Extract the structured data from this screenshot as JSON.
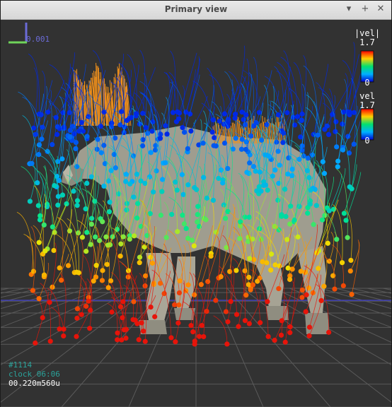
{
  "window": {
    "title": "Primary view"
  },
  "controls": {
    "minimize": "▾",
    "maximize": "+",
    "close": "✕"
  },
  "scale_bar": {
    "label": "0.001"
  },
  "colorbars": [
    {
      "title": "|vel|",
      "max": "1.7",
      "min": "0"
    },
    {
      "title": "vel",
      "max": "1.7",
      "min": "0"
    }
  ],
  "hud": {
    "frame": "#1114",
    "clock": "clock 06:06",
    "time": "00.220m560u"
  },
  "colors": {
    "background": "#323232",
    "grid": "#5a5a5a",
    "horse": "#a3a193",
    "mane": "#ee8f1c",
    "hud_accent": "#2aa29a",
    "hud_text": "#ffffff"
  }
}
